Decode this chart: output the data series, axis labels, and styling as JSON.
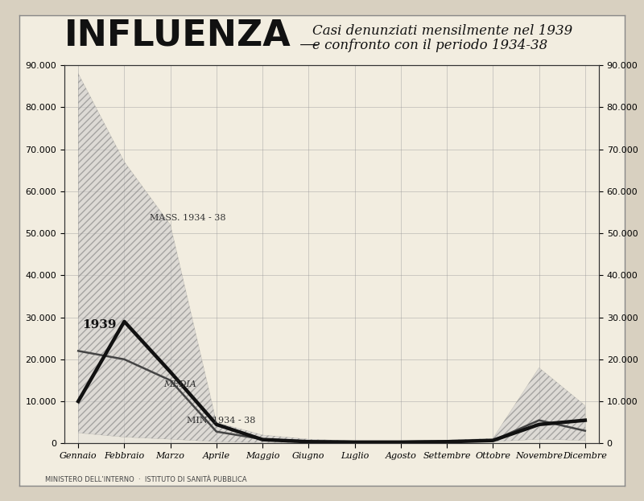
{
  "title_main": "INFLUENZA",
  "title_dash": " —",
  "title_sub1": "Casi denunziati mensilmente nel 1939",
  "title_sub2": "e confronto con il periodo 1934-38",
  "footer": "MINISTERO DELL’INTERNO  ·  ISTITUTO DI SANITÀ PUBBLICA",
  "months": [
    "Gennaio",
    "Febbraio",
    "Marzo",
    "Aprile",
    "Maggio",
    "Giugno",
    "Luglio",
    "Agosto",
    "Settembre",
    "Ottobre",
    "Novembre",
    "Dicembre"
  ],
  "mass_1934_38": [
    88000,
    67000,
    52000,
    5000,
    2000,
    1000,
    600,
    600,
    800,
    1200,
    18000,
    9000
  ],
  "min_1934_38": [
    2500,
    1500,
    1000,
    400,
    200,
    150,
    150,
    150,
    200,
    400,
    1000,
    700
  ],
  "media_1934_38": [
    22000,
    20000,
    15000,
    2800,
    1000,
    500,
    400,
    400,
    500,
    700,
    5500,
    3000
  ],
  "data_1939": [
    10000,
    29000,
    17000,
    4500,
    900,
    400,
    300,
    300,
    400,
    700,
    4500,
    5500
  ],
  "ylim": [
    0,
    90000
  ],
  "yticks": [
    0,
    10000,
    20000,
    30000,
    40000,
    50000,
    60000,
    70000,
    80000,
    90000
  ],
  "outer_bg": "#d8d0c0",
  "inner_bg": "#f2ede0",
  "plot_bg": "#f2ede0",
  "fill_color": "#aaaaaa",
  "line_1939_color": "#111111",
  "line_media_color": "#444444",
  "grid_color": "#999999",
  "spine_color": "#333333",
  "hatch_pattern": "////",
  "title_main_size": 32,
  "title_sub_size": 12,
  "tick_label_size": 8,
  "annot_size": 8
}
